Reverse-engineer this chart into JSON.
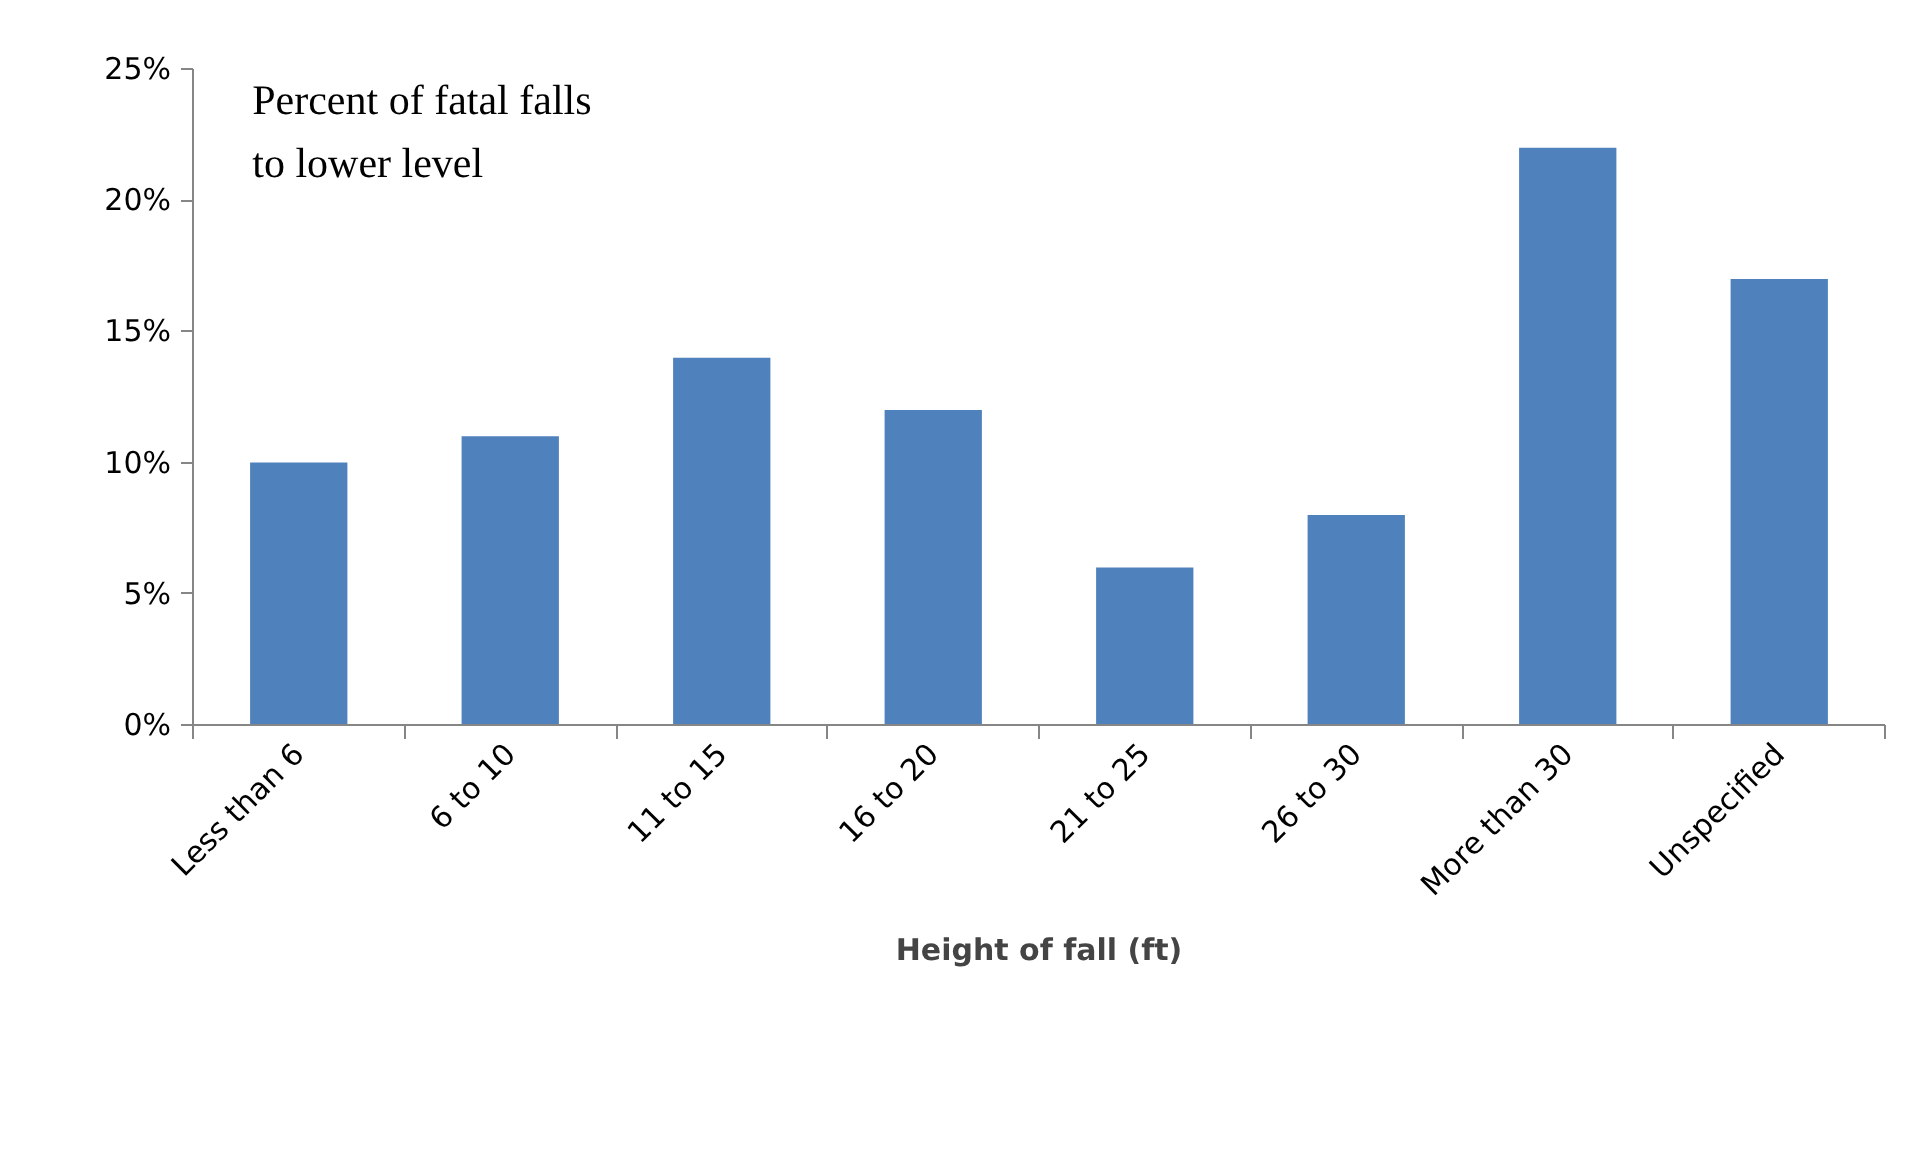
{
  "chart_data": {
    "type": "bar",
    "title": "Percent of fatal falls\nto lower level",
    "xlabel": "Height of fall (ft)",
    "categories": [
      "Less than 6",
      "6 to 10",
      "11 to 15",
      "16 to 20",
      "21 to 25",
      "26 to 30",
      "More than 30",
      "Unspecified"
    ],
    "values": [
      10,
      11,
      14,
      12,
      6,
      8,
      22,
      17
    ],
    "color": "#4f81bd",
    "ylim": [
      0,
      25
    ],
    "yticks": [
      {
        "value": 0,
        "label": "0%"
      },
      {
        "value": 5,
        "label": "5%"
      },
      {
        "value": 10,
        "label": "10%"
      },
      {
        "value": 15,
        "label": "15%"
      },
      {
        "value": 20,
        "label": "20%"
      },
      {
        "value": 25,
        "label": "25%"
      }
    ],
    "grid": false
  }
}
